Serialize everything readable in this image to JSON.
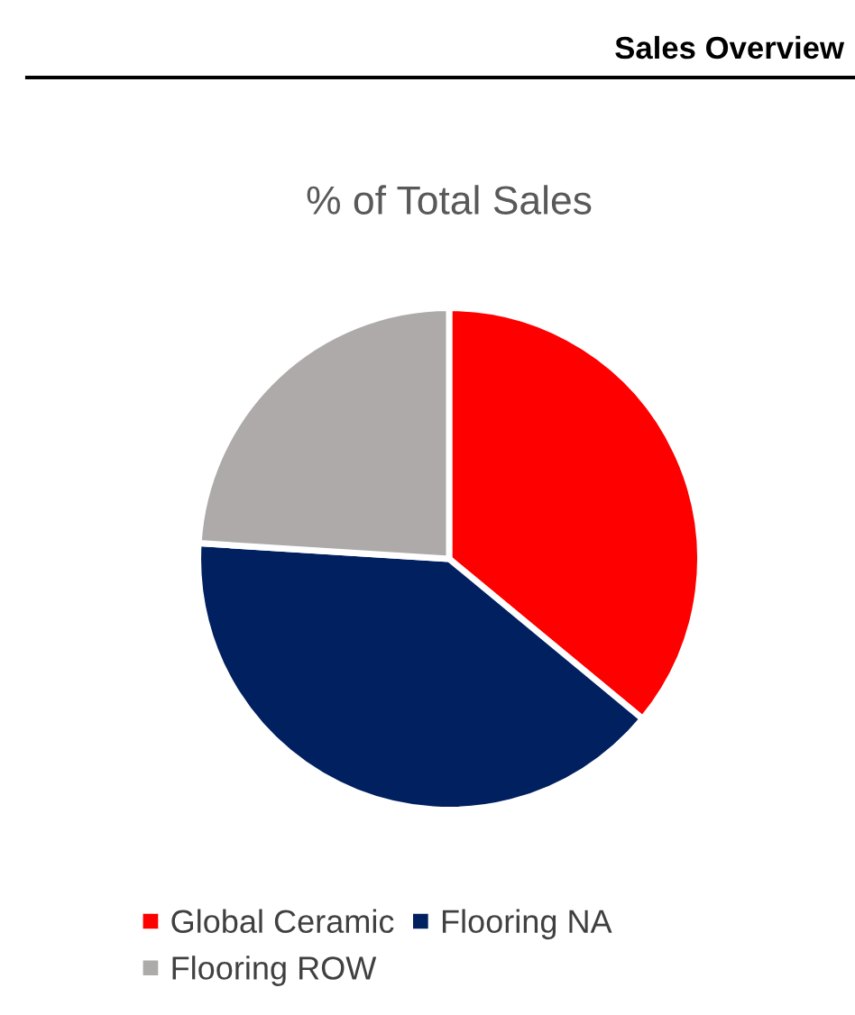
{
  "chart_data": {
    "type": "pie",
    "title": "Sales Overview",
    "subtitle": "% of Total Sales",
    "categories": [
      "Global Ceramic",
      "Flooring NA",
      "Flooring ROW"
    ],
    "values": [
      36,
      40,
      24
    ],
    "colors": [
      "#ff0000",
      "#002060",
      "#aeaaaa"
    ],
    "legend": "bottom"
  }
}
